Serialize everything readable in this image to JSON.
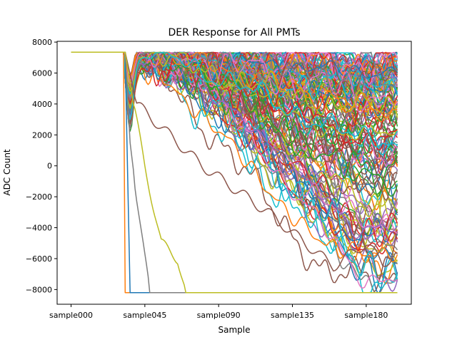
{
  "chart_data": {
    "type": "line",
    "title": "DER Response for All PMTs",
    "xlabel": "Sample",
    "ylabel": "ADC Count",
    "x_tick_labels": [
      "sample000",
      "sample045",
      "sample090",
      "sample135",
      "sample180"
    ],
    "x_tick_indices": [
      0,
      45,
      90,
      135,
      180
    ],
    "n_samples": 200,
    "xlim": [
      -8.5,
      207.5
    ],
    "ylim": [
      -8950,
      8050
    ],
    "y_ticks": [
      -8000,
      -6000,
      -4000,
      -2000,
      0,
      2000,
      4000,
      6000,
      8000
    ],
    "y_tick_labels": [
      "−8000",
      "−6000",
      "−4000",
      "−2000",
      "0",
      "2000",
      "4000",
      "6000",
      "8000"
    ],
    "baseline": 7350,
    "saturation_floor": -8200,
    "pulse_onset_sample": 33,
    "grid": false,
    "legend": "none",
    "n_traces": 160,
    "colors": [
      "#1f77b4",
      "#ff7f0e",
      "#2ca02c",
      "#d62728",
      "#9467bd",
      "#8c564b",
      "#e377c2",
      "#7f7f7f",
      "#bcbd22",
      "#17becf"
    ],
    "series_templates": [
      {
        "color": "#ff7f0e",
        "values": [
          [
            0,
            7350
          ],
          [
            32,
            7350
          ],
          [
            33,
            -8200
          ],
          [
            199,
            -8200
          ]
        ]
      },
      {
        "color": "#1f77b4",
        "values": [
          [
            0,
            7350
          ],
          [
            33,
            7350
          ],
          [
            34,
            2000
          ],
          [
            36,
            -8200
          ],
          [
            199,
            -8200
          ]
        ]
      },
      {
        "color": "#7f7f7f",
        "values": [
          [
            0,
            7350
          ],
          [
            33,
            7350
          ],
          [
            36,
            1500
          ],
          [
            40,
            -2000
          ],
          [
            45,
            -6000
          ],
          [
            48,
            -8200
          ],
          [
            199,
            -8200
          ]
        ]
      },
      {
        "color": "#8c564b",
        "values": [
          [
            0,
            7350
          ],
          [
            33,
            7350
          ],
          [
            40,
            4000
          ],
          [
            80,
            0
          ],
          [
            120,
            -3000
          ],
          [
            160,
            -6500
          ],
          [
            180,
            -5000
          ],
          [
            190,
            -6300
          ],
          [
            199,
            -5700
          ]
        ]
      },
      {
        "color": "#bcbd22",
        "values": [
          [
            0,
            7350
          ],
          [
            33,
            7350
          ],
          [
            38,
            4000
          ],
          [
            45,
            0
          ],
          [
            55,
            -5000
          ],
          [
            65,
            -6000
          ],
          [
            70,
            -8200
          ],
          [
            199,
            -8200
          ]
        ]
      }
    ]
  }
}
